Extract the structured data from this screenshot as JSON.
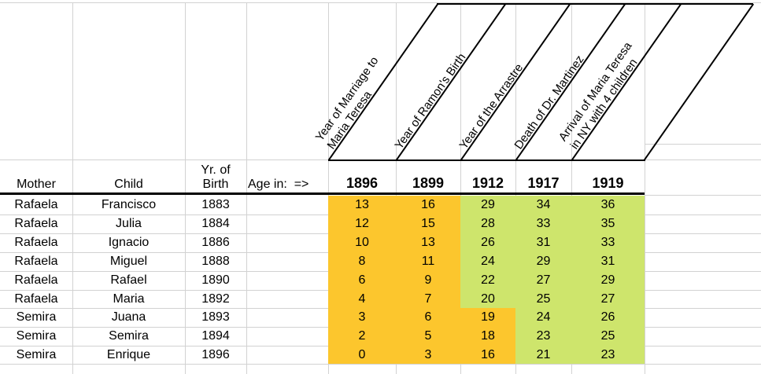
{
  "sheet": {
    "columns": {
      "mother": "Mother",
      "child": "Child",
      "birth": "Yr. of\nBirth",
      "age_in": "Age in:  =>"
    },
    "events": [
      {
        "label": "Year of Marriage to\nMaria Teresa",
        "year": "1896"
      },
      {
        "label": "Year of Ramon's Birth",
        "year": "1899"
      },
      {
        "label": "Year of the Arrastre",
        "year": "1912"
      },
      {
        "label": "Death of Dr. Martinez",
        "year": "1917"
      },
      {
        "label": "Arrival of Maria Teresa\nin NY with 4 children",
        "year": "1919"
      }
    ],
    "rows": [
      {
        "mother": "Rafaela",
        "child": "Francisco",
        "birth": "1883",
        "ages": [
          "13",
          "16",
          "29",
          "34",
          "36"
        ]
      },
      {
        "mother": "Rafaela",
        "child": "Julia",
        "birth": "1884",
        "ages": [
          "12",
          "15",
          "28",
          "33",
          "35"
        ]
      },
      {
        "mother": "Rafaela",
        "child": "Ignacio",
        "birth": "1886",
        "ages": [
          "10",
          "13",
          "26",
          "31",
          "33"
        ]
      },
      {
        "mother": "Rafaela",
        "child": "Miguel",
        "birth": "1888",
        "ages": [
          "8",
          "11",
          "24",
          "29",
          "31"
        ]
      },
      {
        "mother": "Rafaela",
        "child": "Rafael",
        "birth": "1890",
        "ages": [
          "6",
          "9",
          "22",
          "27",
          "29"
        ]
      },
      {
        "mother": "Rafaela",
        "child": "Maria",
        "birth": "1892",
        "ages": [
          "4",
          "7",
          "20",
          "25",
          "27"
        ]
      },
      {
        "mother": "Semira",
        "child": "Juana",
        "birth": "1893",
        "ages": [
          "3",
          "6",
          "19",
          "24",
          "26"
        ]
      },
      {
        "mother": "Semira",
        "child": "Semira",
        "birth": "1894",
        "ages": [
          "2",
          "5",
          "18",
          "23",
          "25"
        ]
      },
      {
        "mother": "Semira",
        "child": "Enrique",
        "birth": "1896",
        "ages": [
          "0",
          "3",
          "16",
          "21",
          "23"
        ]
      }
    ],
    "colors": {
      "highlight_orange": "#FCC62D",
      "highlight_green": "#CEE56C",
      "gridline": "#d2d2d2",
      "border": "#000000"
    }
  }
}
